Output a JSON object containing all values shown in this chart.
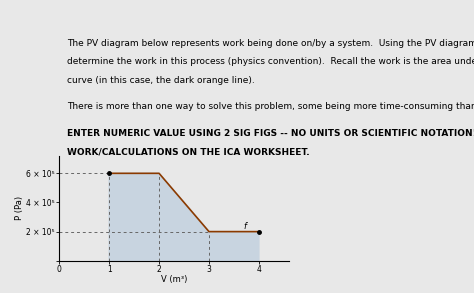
{
  "text_lines": [
    {
      "text": "The PV diagram below represents work being done on/by a system.  Using the PV diagram,",
      "bold": false
    },
    {
      "text": "determine the work in this process (physics convention).  Recall the work is the area under the",
      "bold": false
    },
    {
      "text": "curve (in this case, the dark orange line).",
      "bold": false
    },
    {
      "text": "",
      "bold": false
    },
    {
      "text": "There is more than one way to solve this problem, some being more time-consuming than others.",
      "bold": false
    },
    {
      "text": "",
      "bold": false
    },
    {
      "text": "ENTER NUMERIC VALUE USING 2 SIG FIGS -- NO UNITS OR SCIENTIFIC NOTATION!  SHOW",
      "bold": true
    },
    {
      "text": "WORK/CALCULATIONS ON THE ICA WORKSHEET.",
      "bold": true
    }
  ],
  "ylabel": "P (Pa)",
  "xlabel": "V (m³)",
  "xlim": [
    0,
    4.6
  ],
  "ylim": [
    0,
    720000.0
  ],
  "xticks": [
    0,
    1,
    2,
    3,
    4
  ],
  "ytick_labels": [
    "",
    "2 × 10⁵",
    "4 × 10⁵",
    "6 × 10⁵"
  ],
  "ytick_values": [
    0,
    200000.0,
    400000.0,
    600000.0
  ],
  "curve_x": [
    1,
    2,
    3,
    4
  ],
  "curve_y": [
    600000.0,
    600000.0,
    200000.0,
    200000.0
  ],
  "fill_color": "#c8d4e0",
  "line_color": "#8B3A00",
  "dashed_color": "#666666",
  "bg_color": "#e8e8e8",
  "text_fontsize": 6.5,
  "tick_fontsize": 5.5,
  "axis_label_fontsize": 6.0
}
